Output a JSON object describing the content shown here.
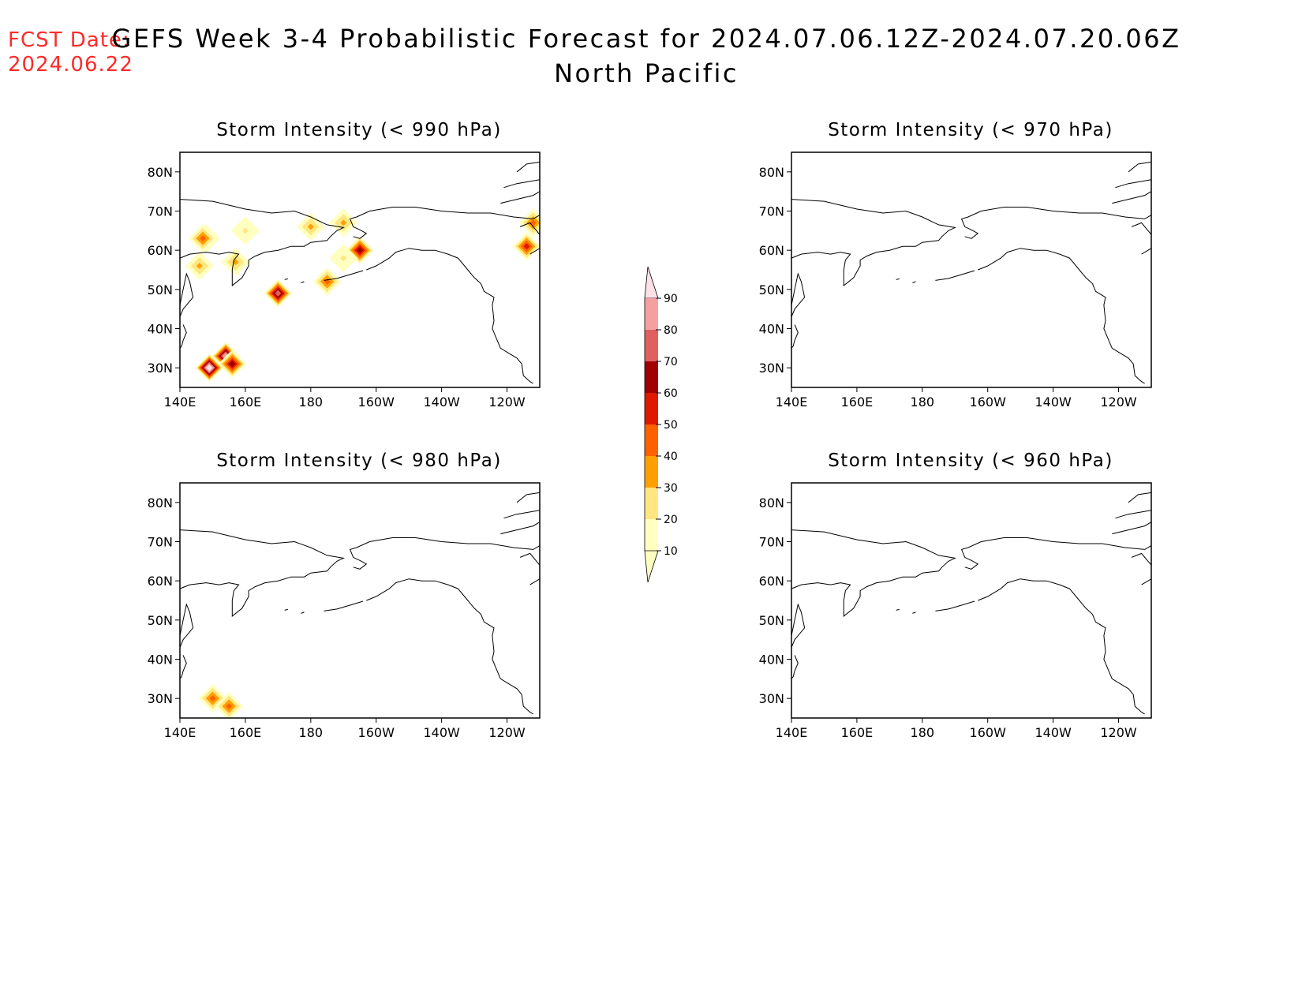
{
  "fcst": {
    "line1": "FCST Date:",
    "line2": "2024.06.22"
  },
  "title": {
    "line1": "GEFS Week 3-4 Probabilistic Forecast for 2024.07.06.12Z-2024.07.20.06Z",
    "line2": "North Pacific"
  },
  "colors": {
    "text_accent": "#ff2a2a",
    "levels": [
      "#ffffc0",
      "#ffe680",
      "#ffa000",
      "#ff6000",
      "#e01800",
      "#a00000",
      "#e06060",
      "#f4a0a0",
      "#ffe0e8"
    ]
  },
  "colorbar": {
    "labels": [
      "90",
      "80",
      "70",
      "60",
      "50",
      "40",
      "30",
      "20",
      "10"
    ]
  },
  "map_axes": {
    "lon_ticks": [
      "140E",
      "160E",
      "180",
      "160W",
      "140W",
      "120W"
    ],
    "lat_ticks": [
      "80N",
      "70N",
      "60N",
      "50N",
      "40N",
      "30N"
    ],
    "lon_range_deg_east": [
      140,
      250
    ],
    "lat_range_deg_north": [
      25,
      85
    ]
  },
  "panels": [
    {
      "id": "p990",
      "title": "Storm Intensity (< 990 hPa)",
      "blobs": [
        {
          "lon": 148,
          "lat": 63,
          "level": 1
        },
        {
          "lon": 147,
          "lat": 63,
          "level": 3
        },
        {
          "lon": 157,
          "lat": 57,
          "level": 2
        },
        {
          "lon": 146,
          "lat": 56,
          "level": 2
        },
        {
          "lon": 160,
          "lat": 65,
          "level": 1
        },
        {
          "lon": 180,
          "lat": 66,
          "level": 2
        },
        {
          "lon": 190,
          "lat": 67,
          "level": 2
        },
        {
          "lon": 195,
          "lat": 60,
          "level": 5
        },
        {
          "lon": 190,
          "lat": 58,
          "level": 1
        },
        {
          "lon": 185,
          "lat": 52,
          "level": 3
        },
        {
          "lon": 170,
          "lat": 49,
          "level": 6
        },
        {
          "lon": 154,
          "lat": 33,
          "level": 7
        },
        {
          "lon": 156,
          "lat": 31,
          "level": 5
        },
        {
          "lon": 149,
          "lat": 30,
          "level": 8
        },
        {
          "lon": 246,
          "lat": 61,
          "level": 4
        },
        {
          "lon": 248,
          "lat": 67,
          "level": 3
        }
      ]
    },
    {
      "id": "p970",
      "title": "Storm Intensity (< 970 hPa)",
      "blobs": []
    },
    {
      "id": "p980",
      "title": "Storm Intensity (< 980 hPa)",
      "blobs": [
        {
          "lon": 150,
          "lat": 30,
          "level": 3
        },
        {
          "lon": 155,
          "lat": 28,
          "level": 3
        }
      ]
    },
    {
      "id": "p960",
      "title": "Storm Intensity (< 960 hPa)",
      "blobs": []
    }
  ]
}
